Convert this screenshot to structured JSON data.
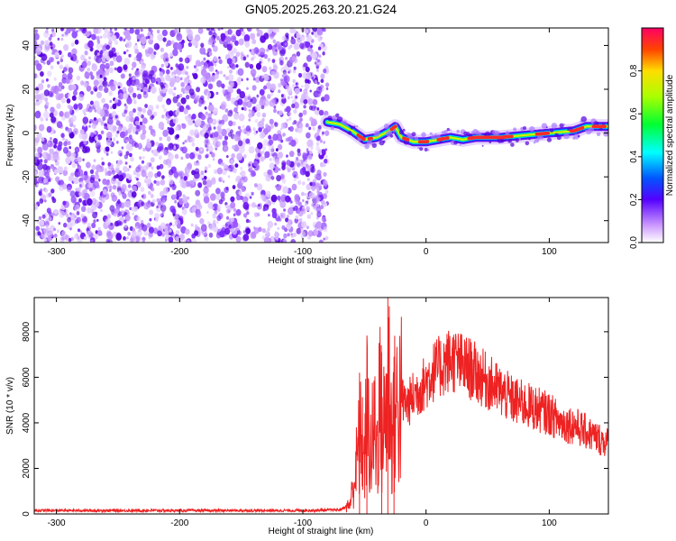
{
  "title": "GN05.2025.263.20.21.G24",
  "chart_data": [
    {
      "type": "heatmap",
      "xlabel": "Height of straight line (km)",
      "ylabel": "Frequency (Hz)",
      "xlim": [
        -318,
        148
      ],
      "ylim": [
        -50,
        48
      ],
      "xticks": [
        -300,
        -200,
        -100,
        0,
        100
      ],
      "yticks": [
        -40,
        -20,
        0,
        20,
        40
      ],
      "noise_region_x": [
        -318,
        -80
      ],
      "ridge": {
        "x": [
          -80,
          -70,
          -60,
          -50,
          -40,
          -30,
          -25,
          -20,
          -10,
          0,
          10,
          20,
          30,
          40,
          60,
          80,
          100,
          120,
          130,
          148
        ],
        "y": [
          5,
          4,
          1,
          -3,
          -2,
          1,
          3,
          -2,
          -4,
          -4,
          -3,
          -2,
          -3,
          -2,
          -2,
          -1,
          0,
          1,
          3,
          3
        ]
      },
      "colorbar": {
        "label": "Normalized spectral amplitude",
        "range": [
          0,
          1
        ],
        "ticks": [
          0.0,
          0.2,
          0.4,
          0.6,
          0.8
        ],
        "tick_labels": [
          "0.0",
          "0.2",
          "0.4",
          "0.6",
          "0.8"
        ]
      }
    },
    {
      "type": "line",
      "xlabel": "Height of straight line (km)",
      "ylabel": "SNR (10 * v/v)",
      "xlim": [
        -318,
        148
      ],
      "ylim": [
        0,
        9500
      ],
      "xticks": [
        -300,
        -200,
        -100,
        0,
        100
      ],
      "yticks": [
        0,
        2000,
        4000,
        6000,
        8000
      ],
      "series": [
        {
          "color": "#ee2222",
          "x": [
            -318,
            -200,
            -100,
            -70,
            -62,
            -58,
            -55,
            -52,
            -50,
            -48,
            -45,
            -42,
            -40,
            -38,
            -35,
            -32,
            -30,
            -28,
            -25,
            -20,
            -15,
            -10,
            -5,
            0,
            5,
            10,
            15,
            20,
            25,
            30,
            35,
            40,
            50,
            60,
            70,
            80,
            90,
            100,
            110,
            120,
            130,
            140,
            148
          ],
          "y": [
            150,
            150,
            150,
            180,
            400,
            1500,
            2800,
            3500,
            2200,
            4500,
            2600,
            3800,
            2800,
            5000,
            3500,
            4800,
            6000,
            3500,
            4500,
            5000,
            4800,
            5200,
            5500,
            5800,
            6200,
            6400,
            6600,
            6800,
            6700,
            6500,
            6400,
            6200,
            5800,
            5400,
            5000,
            4800,
            4600,
            4400,
            4000,
            3900,
            3600,
            3300,
            3100
          ]
        }
      ],
      "spikes": [
        {
          "x": -31,
          "y": 9500
        },
        {
          "x": -36,
          "y": 7100
        },
        {
          "x": -48,
          "y": 6400
        },
        {
          "x": -54,
          "y": 6200
        },
        {
          "x": -26,
          "y": 6900
        }
      ]
    }
  ]
}
